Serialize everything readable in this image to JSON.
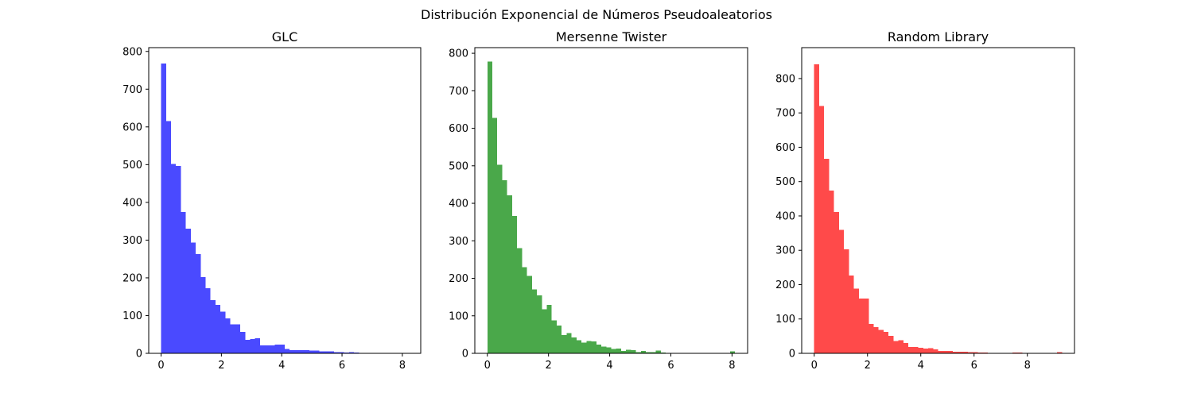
{
  "figure": {
    "title": "Distribución Exponencial de Números Pseudoaleatorios"
  },
  "chart_data": [
    {
      "type": "bar",
      "title": "GLC",
      "color": "#4a4aff",
      "xlim": [
        -0.41,
        8.61
      ],
      "ylim": [
        0,
        810
      ],
      "xticks": [
        0,
        2,
        4,
        6,
        8
      ],
      "yticks": [
        0,
        100,
        200,
        300,
        400,
        500,
        600,
        700,
        800
      ],
      "bin_start": 0.0,
      "bin_width": 0.164,
      "values": [
        768,
        615,
        502,
        497,
        375,
        330,
        293,
        263,
        202,
        172,
        141,
        128,
        110,
        93,
        77,
        77,
        57,
        36,
        38,
        40,
        21,
        21,
        21,
        23,
        23,
        12,
        8,
        8,
        8,
        8,
        7,
        7,
        5,
        5,
        5,
        3,
        3,
        2,
        3,
        2,
        1,
        1,
        1,
        1,
        1,
        1,
        0,
        0,
        1,
        1
      ]
    },
    {
      "type": "bar",
      "title": "Mersenne Twister",
      "color": "#4aa84a",
      "xlim": [
        -0.41,
        8.51
      ],
      "ylim": [
        0,
        815
      ],
      "xticks": [
        0,
        2,
        4,
        6,
        8
      ],
      "yticks": [
        0,
        100,
        200,
        300,
        400,
        500,
        600,
        700,
        800
      ],
      "bin_start": 0.0,
      "bin_width": 0.162,
      "values": [
        778,
        628,
        503,
        462,
        421,
        366,
        280,
        230,
        206,
        170,
        155,
        117,
        129,
        88,
        74,
        49,
        54,
        42,
        35,
        29,
        33,
        32,
        23,
        18,
        16,
        12,
        13,
        6,
        9,
        8,
        3,
        6,
        3,
        3,
        7,
        2,
        1,
        1,
        1,
        1,
        0,
        0,
        1,
        0,
        0,
        0,
        0,
        0,
        0,
        5
      ]
    },
    {
      "type": "bar",
      "title": "Random Library",
      "color": "#ff4a4a",
      "xlim": [
        -0.47,
        9.77
      ],
      "ylim": [
        0,
        890
      ],
      "xticks": [
        0,
        2,
        4,
        6,
        8
      ],
      "yticks": [
        0,
        100,
        200,
        300,
        400,
        500,
        600,
        700,
        800
      ],
      "bin_start": 0.0,
      "bin_width": 0.186,
      "values": [
        842,
        720,
        566,
        474,
        412,
        360,
        303,
        226,
        188,
        160,
        159,
        85,
        76,
        68,
        62,
        51,
        36,
        38,
        30,
        19,
        19,
        16,
        14,
        15,
        11,
        7,
        7,
        7,
        5,
        5,
        5,
        3,
        3,
        2,
        2,
        1,
        1,
        1,
        1,
        1,
        2,
        2,
        1,
        0,
        0,
        0,
        0,
        0,
        0,
        3
      ]
    }
  ]
}
